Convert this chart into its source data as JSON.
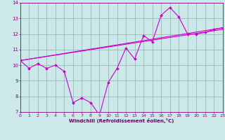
{
  "bg_color": "#cce8e8",
  "line_color": "#cc00cc",
  "grid_color": "#99bbbb",
  "xlim": [
    0,
    23
  ],
  "ylim": [
    7,
    14
  ],
  "xticks": [
    0,
    1,
    2,
    3,
    4,
    5,
    6,
    7,
    8,
    9,
    10,
    11,
    12,
    13,
    14,
    15,
    16,
    17,
    18,
    19,
    20,
    21,
    22,
    23
  ],
  "yticks": [
    7,
    8,
    9,
    10,
    11,
    12,
    13,
    14
  ],
  "xlabel": "Windchill (Refroidissement éolien,°C)",
  "line1_x": [
    0,
    1,
    2,
    3,
    4,
    5,
    6,
    7,
    8,
    9,
    10,
    11,
    12,
    13,
    14,
    15,
    16,
    17,
    18,
    19,
    20,
    21,
    22,
    23
  ],
  "line1_y": [
    10.3,
    9.8,
    10.1,
    9.8,
    10.0,
    9.6,
    7.6,
    7.9,
    7.6,
    6.8,
    8.9,
    9.8,
    11.1,
    10.4,
    11.9,
    11.5,
    13.2,
    13.7,
    13.1,
    12.0,
    12.0,
    12.1,
    12.3,
    12.4
  ],
  "line2_x": [
    0,
    23
  ],
  "line2_y": [
    10.3,
    12.3
  ],
  "line3_x": [
    0,
    23
  ],
  "line3_y": [
    10.3,
    12.4
  ],
  "tick_color": "#880088",
  "spine_color": "#880088",
  "xlabel_color": "#660066"
}
